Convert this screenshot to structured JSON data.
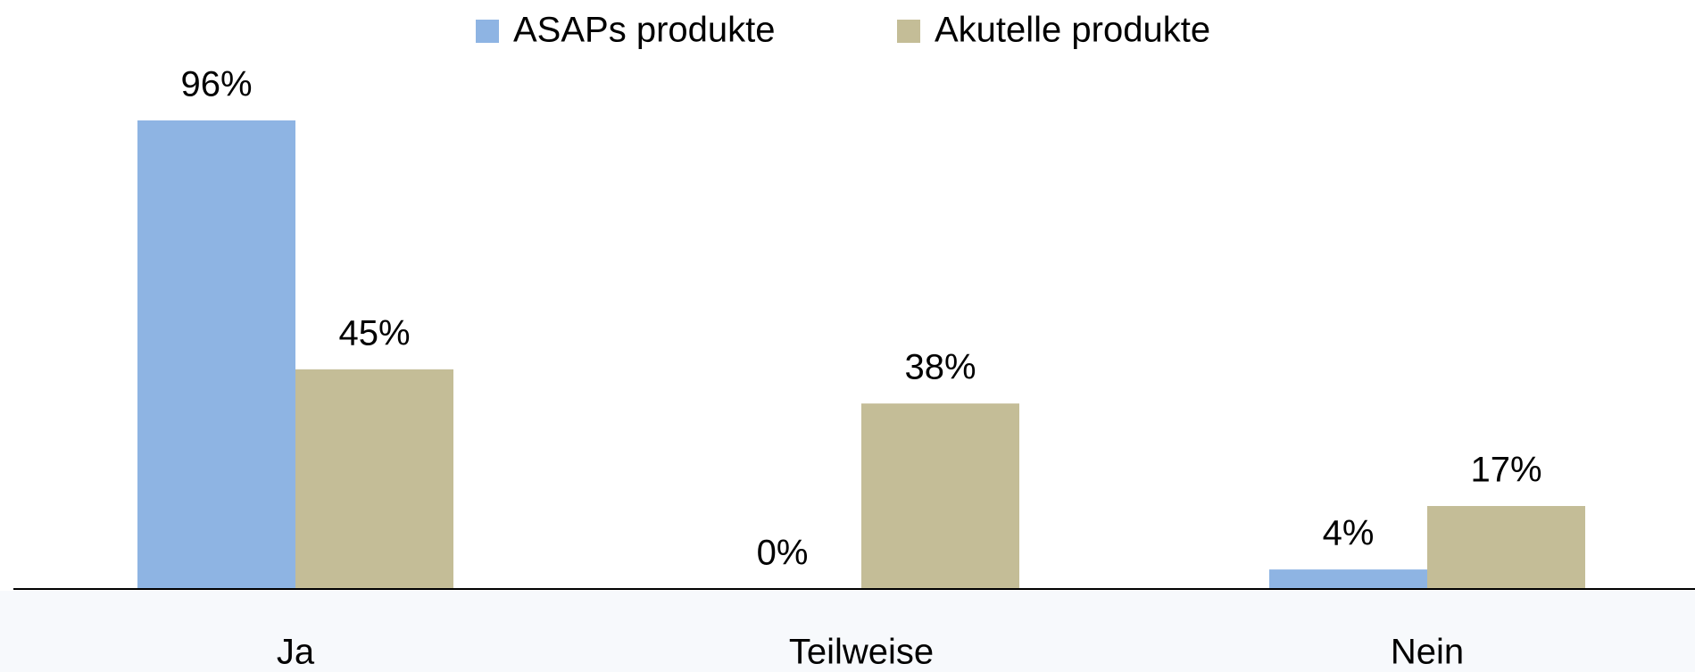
{
  "chart_data": {
    "type": "bar",
    "categories": [
      "Ja",
      "Teilweise",
      "Nein"
    ],
    "series": [
      {
        "name": "ASAPs produkte",
        "color": "#8eb4e3",
        "values": [
          96,
          0,
          4
        ],
        "value_labels": [
          "96%",
          "0%",
          "4%"
        ]
      },
      {
        "name": "Akutelle produkte",
        "color": "#c4bd97",
        "values": [
          45,
          38,
          17
        ],
        "value_labels": [
          "45%",
          "38%",
          "17%"
        ]
      }
    ],
    "ylim": [
      0,
      100
    ],
    "legend": "top"
  }
}
